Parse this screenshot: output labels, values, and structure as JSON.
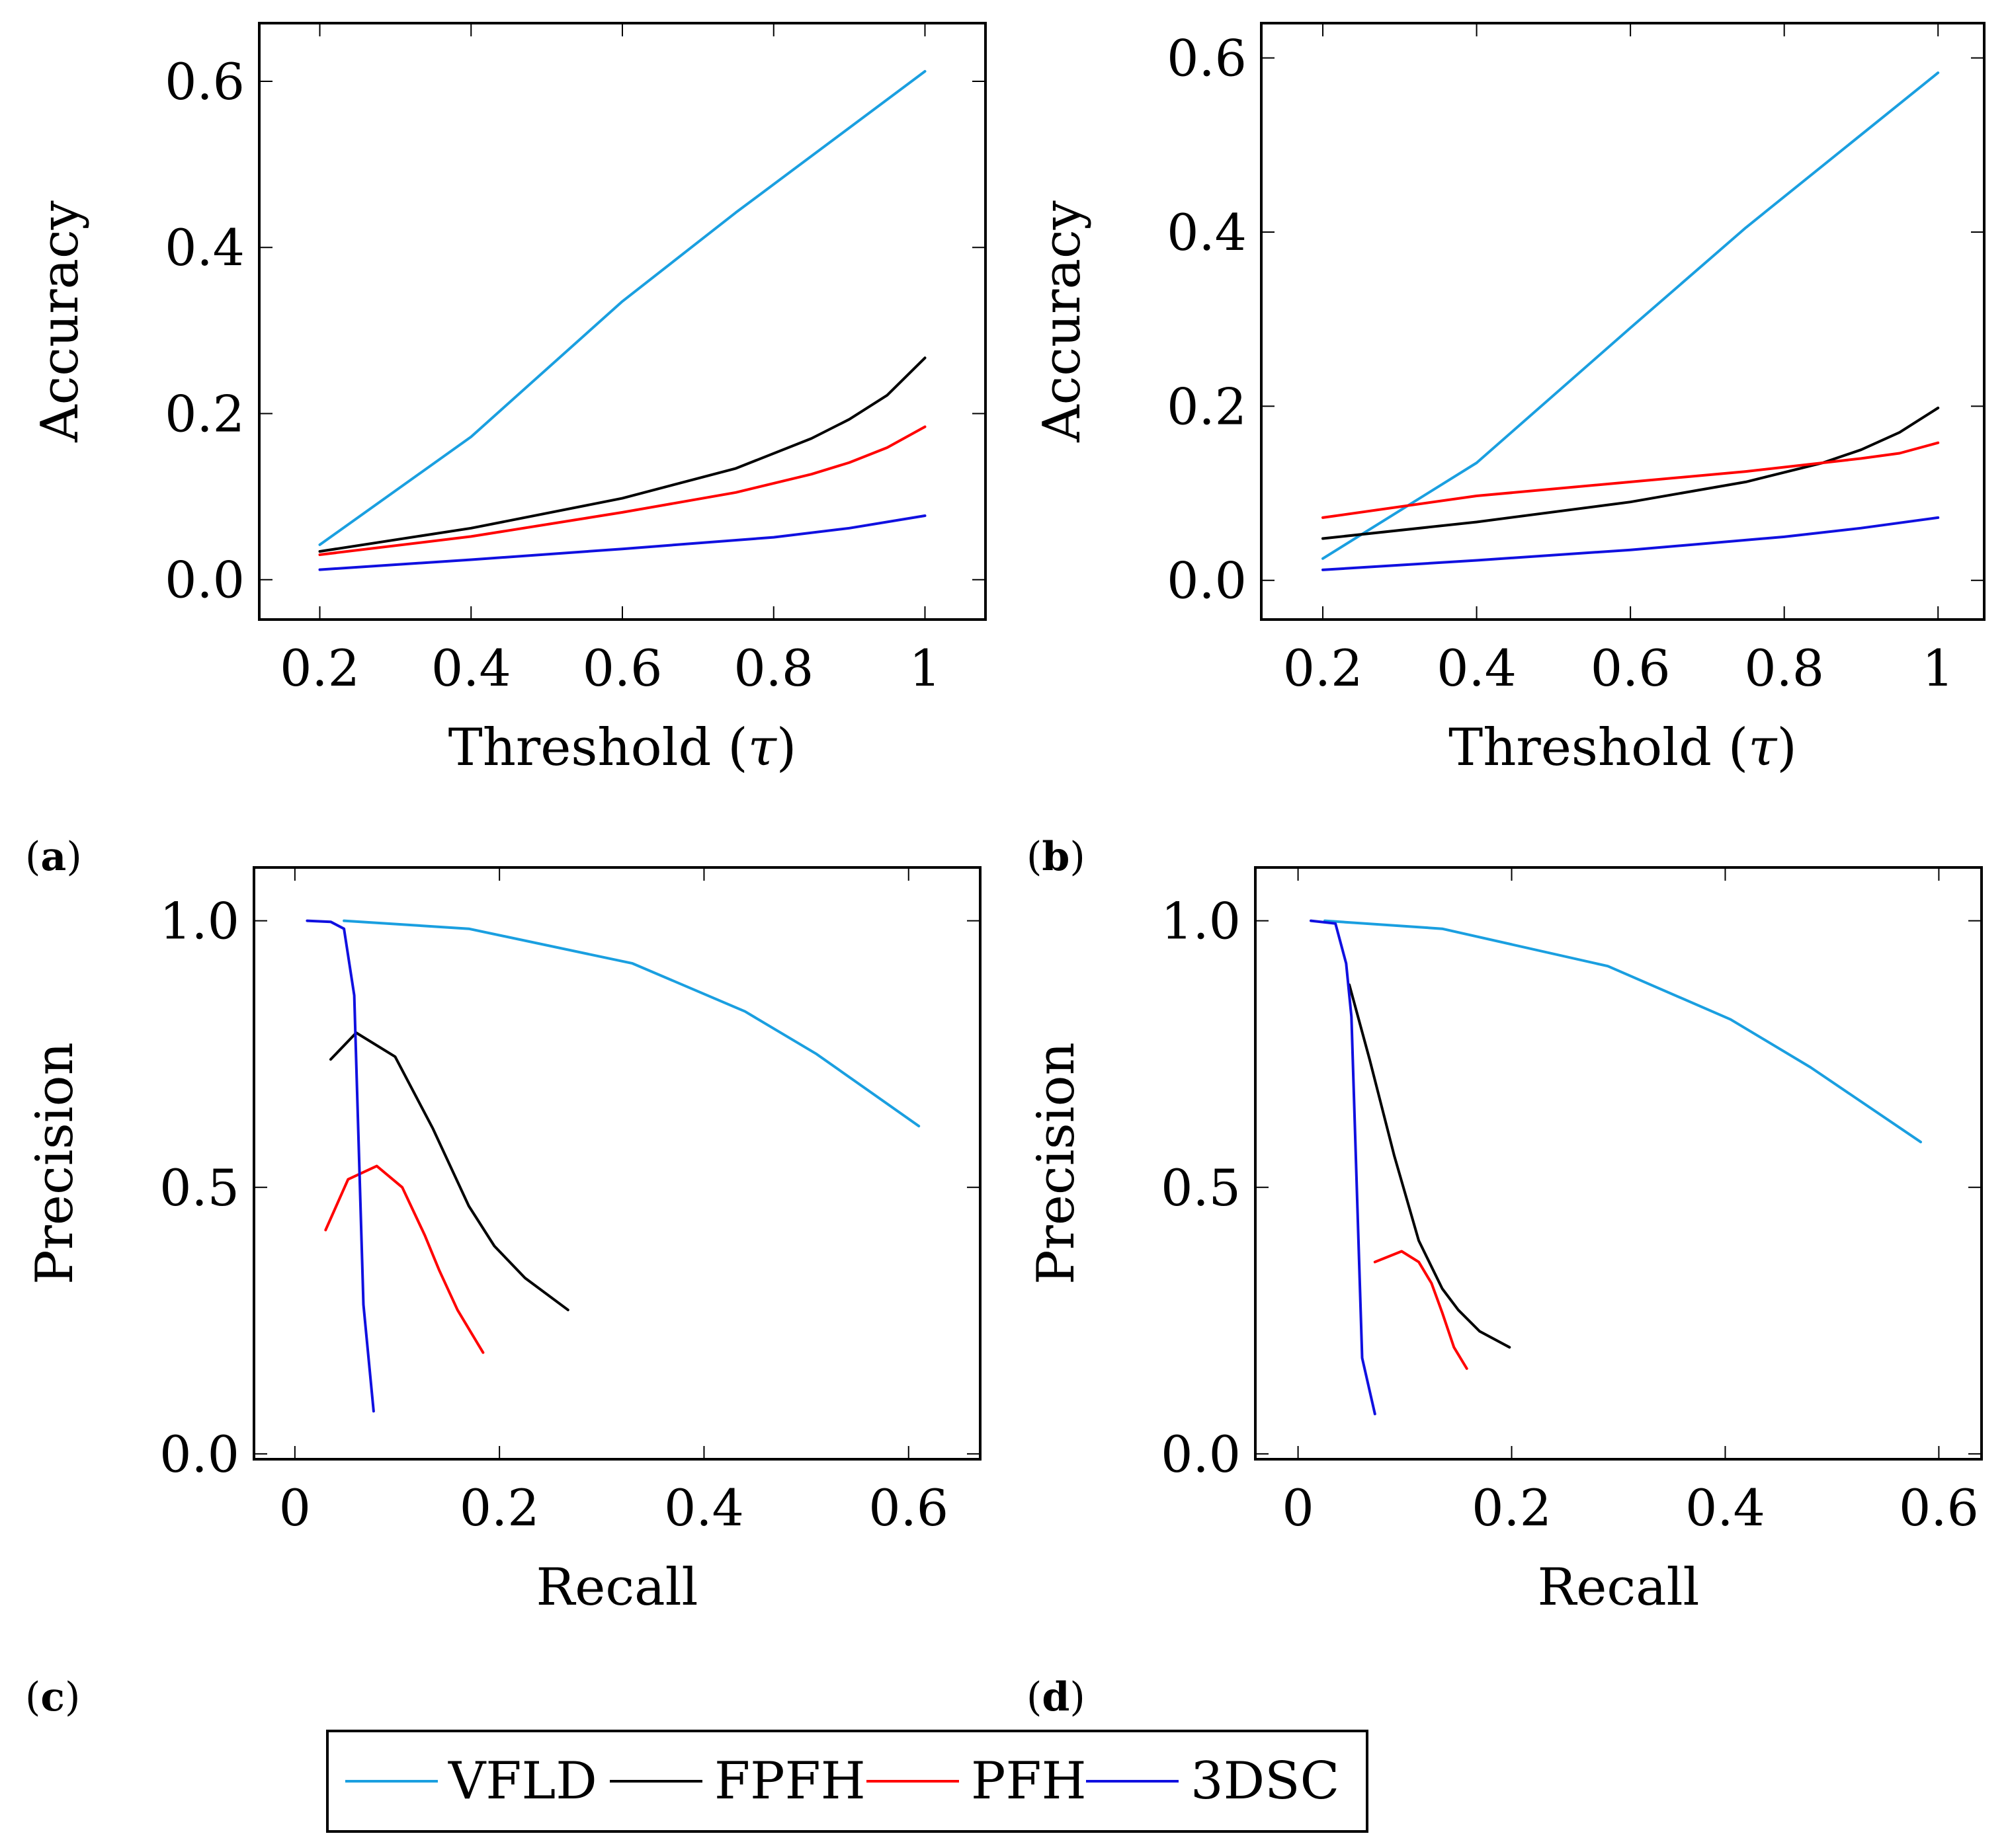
{
  "colors": {
    "VFLD": "#1a9fe0",
    "FPFH": "#000000",
    "PFH": "#ff0000",
    "3DSC": "#1010e0"
  },
  "legend": {
    "items": [
      {
        "name": "VFLD",
        "color": "#1a9fe0"
      },
      {
        "name": "FPFH",
        "color": "#000000"
      },
      {
        "name": "PFH",
        "color": "#ff0000"
      },
      {
        "name": "3DSC",
        "color": "#1010e0"
      }
    ]
  },
  "panel_labels": [
    "a",
    "b",
    "c",
    "d"
  ],
  "chart_data": [
    {
      "id": "a",
      "type": "line",
      "xlabel_pre": "Threshold (",
      "xlabel_sym": "τ",
      "xlabel_post": ")",
      "ylabel": "Accuracy",
      "xlim": [
        0.12,
        1.08
      ],
      "ylim": [
        -0.048,
        0.67
      ],
      "xticks": [
        0.2,
        0.4,
        0.6,
        0.8,
        1
      ],
      "xtick_labels": [
        "0.2",
        "0.4",
        "0.6",
        "0.8",
        "1"
      ],
      "yticks": [
        0,
        0.2,
        0.4,
        0.6
      ],
      "ytick_labels": [
        "0.0",
        "0.2",
        "0.4",
        "0.6"
      ],
      "series": [
        {
          "name": "VFLD",
          "x": [
            0.2,
            0.4,
            0.6,
            0.75,
            1.0
          ],
          "y": [
            0.042,
            0.172,
            0.335,
            0.442,
            0.612
          ]
        },
        {
          "name": "FPFH",
          "x": [
            0.2,
            0.4,
            0.6,
            0.75,
            0.85,
            0.9,
            0.95,
            1.0
          ],
          "y": [
            0.034,
            0.062,
            0.098,
            0.134,
            0.17,
            0.193,
            0.222,
            0.267
          ]
        },
        {
          "name": "PFH",
          "x": [
            0.2,
            0.4,
            0.6,
            0.75,
            0.85,
            0.9,
            0.95,
            1.0
          ],
          "y": [
            0.03,
            0.052,
            0.081,
            0.105,
            0.127,
            0.141,
            0.159,
            0.184
          ]
        },
        {
          "name": "3DSC",
          "x": [
            0.2,
            0.4,
            0.6,
            0.8,
            0.9,
            1.0
          ],
          "y": [
            0.012,
            0.024,
            0.037,
            0.051,
            0.062,
            0.077
          ]
        }
      ]
    },
    {
      "id": "b",
      "type": "line",
      "xlabel_pre": "Threshold (",
      "xlabel_sym": "τ",
      "xlabel_post": ")",
      "ylabel": "Accuracy",
      "xlim": [
        0.12,
        1.06
      ],
      "ylim": [
        -0.045,
        0.64
      ],
      "xticks": [
        0.2,
        0.4,
        0.6,
        0.8,
        1
      ],
      "xtick_labels": [
        "0.2",
        "0.4",
        "0.6",
        "0.8",
        "1"
      ],
      "yticks": [
        0,
        0.2,
        0.4,
        0.6
      ],
      "ytick_labels": [
        "0.0",
        "0.2",
        "0.4",
        "0.6"
      ],
      "series": [
        {
          "name": "VFLD",
          "x": [
            0.2,
            0.4,
            0.6,
            0.75,
            1.0
          ],
          "y": [
            0.025,
            0.135,
            0.29,
            0.405,
            0.583
          ]
        },
        {
          "name": "FPFH",
          "x": [
            0.2,
            0.4,
            0.6,
            0.75,
            0.85,
            0.9,
            0.95,
            1.0
          ],
          "y": [
            0.048,
            0.067,
            0.09,
            0.113,
            0.135,
            0.15,
            0.17,
            0.198
          ]
        },
        {
          "name": "PFH",
          "x": [
            0.2,
            0.4,
            0.6,
            0.75,
            0.85,
            0.9,
            0.95,
            1.0
          ],
          "y": [
            0.072,
            0.097,
            0.113,
            0.125,
            0.135,
            0.14,
            0.146,
            0.158
          ]
        },
        {
          "name": "3DSC",
          "x": [
            0.2,
            0.4,
            0.6,
            0.8,
            0.9,
            1.0
          ],
          "y": [
            0.012,
            0.023,
            0.035,
            0.05,
            0.06,
            0.072
          ]
        }
      ]
    },
    {
      "id": "c",
      "type": "line",
      "xlabel_pre": "Recall",
      "xlabel_sym": "",
      "xlabel_post": "",
      "ylabel": "Precision",
      "xlim": [
        -0.04,
        0.67
      ],
      "ylim": [
        -0.01,
        1.1
      ],
      "xticks": [
        0,
        0.2,
        0.4,
        0.6
      ],
      "xtick_labels": [
        "0",
        "0.2",
        "0.4",
        "0.6"
      ],
      "yticks": [
        0,
        0.5,
        1.0
      ],
      "ytick_labels": [
        "0.0",
        "0.5",
        "1.0"
      ],
      "series": [
        {
          "name": "VFLD",
          "x": [
            0.048,
            0.17,
            0.33,
            0.44,
            0.51,
            0.61
          ],
          "y": [
            1.0,
            0.985,
            0.92,
            0.83,
            0.75,
            0.615
          ]
        },
        {
          "name": "FPFH",
          "x": [
            0.035,
            0.06,
            0.098,
            0.135,
            0.17,
            0.195,
            0.225,
            0.267
          ],
          "y": [
            0.74,
            0.79,
            0.745,
            0.61,
            0.465,
            0.39,
            0.33,
            0.27
          ]
        },
        {
          "name": "PFH",
          "x": [
            0.03,
            0.052,
            0.08,
            0.105,
            0.127,
            0.141,
            0.159,
            0.184
          ],
          "y": [
            0.42,
            0.515,
            0.54,
            0.5,
            0.41,
            0.345,
            0.27,
            0.19
          ]
        },
        {
          "name": "3DSC",
          "x": [
            0.012,
            0.035,
            0.048,
            0.058,
            0.067,
            0.077
          ],
          "y": [
            1.0,
            0.998,
            0.985,
            0.86,
            0.28,
            0.08
          ]
        }
      ]
    },
    {
      "id": "d",
      "type": "line",
      "xlabel_pre": "Recall",
      "xlabel_sym": "",
      "xlabel_post": "",
      "ylabel": "Precision",
      "xlim": [
        -0.04,
        0.64
      ],
      "ylim": [
        -0.01,
        1.1
      ],
      "xticks": [
        0,
        0.2,
        0.4,
        0.6
      ],
      "xtick_labels": [
        "0",
        "0.2",
        "0.4",
        "0.6"
      ],
      "yticks": [
        0,
        0.5,
        1.0
      ],
      "ytick_labels": [
        "0.0",
        "0.5",
        "1.0"
      ],
      "series": [
        {
          "name": "VFLD",
          "x": [
            0.025,
            0.135,
            0.29,
            0.405,
            0.48,
            0.583
          ],
          "y": [
            1.0,
            0.985,
            0.915,
            0.815,
            0.725,
            0.585
          ]
        },
        {
          "name": "FPFH",
          "x": [
            0.048,
            0.067,
            0.09,
            0.113,
            0.135,
            0.15,
            0.17,
            0.198
          ],
          "y": [
            0.88,
            0.74,
            0.56,
            0.4,
            0.31,
            0.27,
            0.23,
            0.2
          ]
        },
        {
          "name": "PFH",
          "x": [
            0.072,
            0.097,
            0.113,
            0.125,
            0.135,
            0.146,
            0.158
          ],
          "y": [
            0.36,
            0.38,
            0.36,
            0.32,
            0.265,
            0.2,
            0.16
          ]
        },
        {
          "name": "3DSC",
          "x": [
            0.012,
            0.035,
            0.045,
            0.05,
            0.06,
            0.072
          ],
          "y": [
            1.0,
            0.995,
            0.92,
            0.82,
            0.18,
            0.075
          ]
        }
      ]
    }
  ]
}
